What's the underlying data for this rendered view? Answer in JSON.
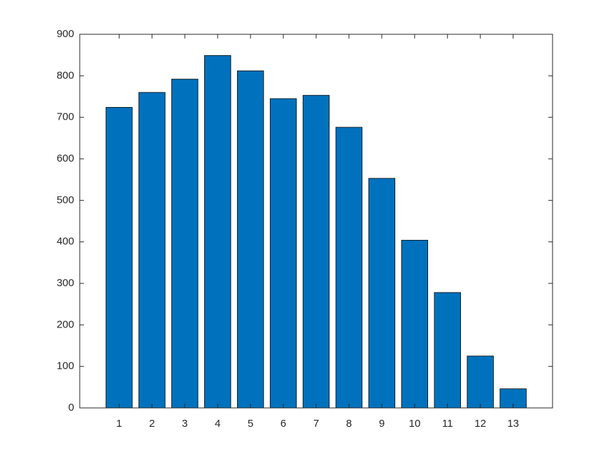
{
  "chart_data": {
    "type": "bar",
    "x": [
      1,
      2,
      3,
      4,
      5,
      6,
      7,
      8,
      9,
      10,
      11,
      12,
      13
    ],
    "values": [
      724,
      760,
      792,
      849,
      812,
      745,
      753,
      676,
      553,
      404,
      278,
      125,
      46
    ],
    "color": "#0072bd",
    "xlim": [
      -0.2,
      14.2
    ],
    "xticks": [
      1,
      2,
      3,
      4,
      5,
      6,
      7,
      8,
      9,
      10,
      11,
      12,
      13
    ],
    "ylim": [
      0,
      900
    ],
    "yticks": [
      0,
      100,
      200,
      300,
      400,
      500,
      600,
      700,
      800,
      900
    ],
    "grid": false
  }
}
